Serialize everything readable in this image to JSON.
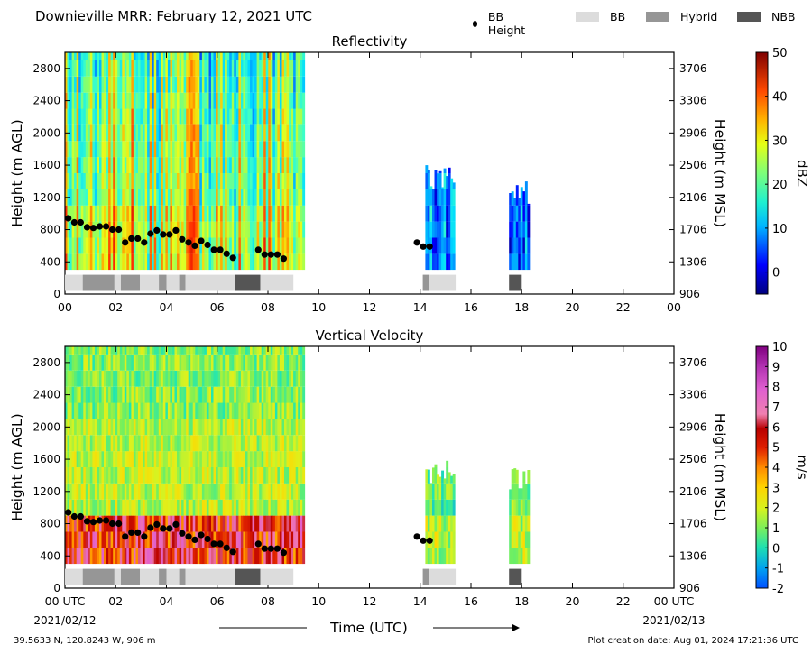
{
  "header": {
    "title": "Downieville MRR:  February 12, 2021 UTC",
    "legend": [
      {
        "label": "BB Height",
        "kind": "dot",
        "color": "#000000"
      },
      {
        "label": "BB",
        "kind": "box",
        "color": "#dcdcdc"
      },
      {
        "label": "Hybrid",
        "kind": "box",
        "color": "#969696"
      },
      {
        "label": "NBB",
        "kind": "box",
        "color": "#555555"
      }
    ]
  },
  "footer": {
    "location": "39.5633 N, 120.8243 W, 906 m",
    "creation": "Plot creation date: Aug 01, 2024 17:21:36 UTC",
    "start_date": "2021/02/12",
    "end_date": "2021/02/13",
    "xlabel": "Time (UTC)"
  },
  "colors": {
    "bb": "#dcdcdc",
    "hybrid": "#969696",
    "nbb": "#555555",
    "bb_point": "#000000"
  },
  "chart_data": [
    {
      "type": "heatmap",
      "title": "Reflectivity",
      "ylabel": "Height (m AGL)",
      "ylabel_right": "Height (m MSL)",
      "xlim": [
        0,
        24
      ],
      "ylim": [
        0,
        3000
      ],
      "x_ticks": [
        "00",
        "02",
        "04",
        "06",
        "08",
        "10",
        "12",
        "14",
        "16",
        "18",
        "20",
        "22",
        "00"
      ],
      "y_ticks": [
        0,
        400,
        800,
        1200,
        1600,
        2000,
        2400,
        2800
      ],
      "y_ticks_right": [
        "906",
        "1306",
        "1706",
        "2106",
        "2506",
        "2906",
        "3306",
        "3706"
      ],
      "colorbar": {
        "label": "dBZ",
        "min": -5,
        "max": 50,
        "ticks": [
          "0",
          "10",
          "20",
          "30",
          "40",
          "50"
        ],
        "tick_values": [
          0,
          10,
          20,
          30,
          40,
          50
        ]
      },
      "data_periods": [
        {
          "start": 0.0,
          "end": 9.4,
          "top": 3000,
          "value_range": [
            10,
            35
          ]
        },
        {
          "start": 14.2,
          "end": 15.3,
          "top": 1600,
          "value_range": [
            0,
            12
          ]
        },
        {
          "start": 17.5,
          "end": 18.3,
          "top": 1400,
          "value_range": [
            0,
            10
          ]
        }
      ]
    },
    {
      "type": "heatmap",
      "title": "Vertical Velocity",
      "ylabel": "Height (m AGL)",
      "ylabel_right": "Height (m MSL)",
      "xlim": [
        0,
        24
      ],
      "ylim": [
        0,
        3000
      ],
      "x_ticks": [
        "00 UTC",
        "02",
        "04",
        "06",
        "08",
        "10",
        "12",
        "14",
        "16",
        "18",
        "20",
        "22",
        "00 UTC"
      ],
      "y_ticks": [
        0,
        400,
        800,
        1200,
        1600,
        2000,
        2400,
        2800
      ],
      "y_ticks_right": [
        "906",
        "1306",
        "1706",
        "2106",
        "2506",
        "2906",
        "3306",
        "3706"
      ],
      "colorbar": {
        "label": "m/s",
        "min": -2,
        "max": 10,
        "ticks": [
          "-2",
          "-1",
          "0",
          "1",
          "2",
          "3",
          "4",
          "5",
          "6",
          "7",
          "8",
          "9",
          "10"
        ],
        "tick_values": [
          -2,
          -1,
          0,
          1,
          2,
          3,
          4,
          5,
          6,
          7,
          8,
          9,
          10
        ]
      },
      "data_periods": [
        {
          "start": 0.0,
          "end": 9.4,
          "top": 3000,
          "value_range": [
            0.5,
            9
          ]
        },
        {
          "start": 14.2,
          "end": 15.3,
          "top": 1600,
          "value_range": [
            0.5,
            3
          ]
        },
        {
          "start": 17.5,
          "end": 18.3,
          "top": 1500,
          "value_range": [
            0.5,
            3
          ]
        }
      ]
    }
  ],
  "bb_height": {
    "times": [
      0.13,
      0.37,
      0.62,
      0.87,
      1.12,
      1.37,
      1.62,
      1.87,
      2.12,
      2.37,
      2.62,
      2.87,
      3.12,
      3.37,
      3.62,
      3.87,
      4.12,
      4.37,
      4.62,
      4.87,
      5.12,
      5.37,
      5.62,
      5.87,
      6.12,
      6.37,
      6.62,
      7.62,
      7.87,
      8.12,
      8.37,
      8.62,
      13.87,
      14.12,
      14.37
    ],
    "heights": [
      940,
      890,
      890,
      830,
      820,
      840,
      840,
      800,
      800,
      640,
      690,
      690,
      640,
      750,
      790,
      740,
      740,
      790,
      680,
      640,
      600,
      660,
      610,
      550,
      550,
      500,
      450,
      550,
      490,
      490,
      490,
      440,
      640,
      590,
      590
    ]
  },
  "bb_classification": [
    {
      "start": 0.0,
      "end": 0.7,
      "type": "BB"
    },
    {
      "start": 0.7,
      "end": 1.95,
      "type": "Hybrid"
    },
    {
      "start": 1.95,
      "end": 2.2,
      "type": "BB"
    },
    {
      "start": 2.2,
      "end": 2.95,
      "type": "Hybrid"
    },
    {
      "start": 2.95,
      "end": 3.7,
      "type": "BB"
    },
    {
      "start": 3.7,
      "end": 4.0,
      "type": "Hybrid"
    },
    {
      "start": 4.0,
      "end": 4.5,
      "type": "BB"
    },
    {
      "start": 4.5,
      "end": 4.75,
      "type": "Hybrid"
    },
    {
      "start": 4.75,
      "end": 6.7,
      "type": "BB"
    },
    {
      "start": 6.7,
      "end": 7.7,
      "type": "NBB"
    },
    {
      "start": 7.7,
      "end": 9.0,
      "type": "BB"
    },
    {
      "start": 14.1,
      "end": 14.35,
      "type": "Hybrid"
    },
    {
      "start": 14.35,
      "end": 15.4,
      "type": "BB"
    },
    {
      "start": 17.5,
      "end": 18.0,
      "type": "NBB"
    }
  ]
}
